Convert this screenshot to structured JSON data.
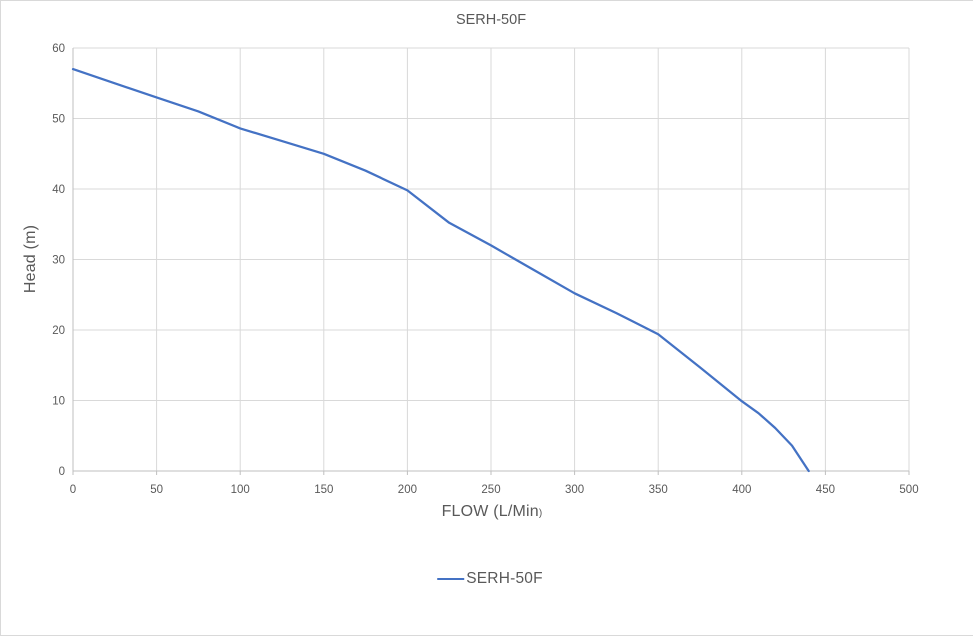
{
  "colors": {
    "accent": "#4472C4",
    "gridline": "#D9D9D9",
    "axis": "#BFBFBF",
    "text": "#595959",
    "background": "#FFFFFF"
  },
  "chart_data": {
    "type": "line",
    "title": "SERH-50F",
    "xlabel": "FLOW (L/Min",
    "xlabel_close_paren": ")",
    "ylabel": "Head (m)",
    "xlim": [
      0,
      500
    ],
    "ylim": [
      0,
      60
    ],
    "x_ticks": [
      0,
      50,
      100,
      150,
      200,
      250,
      300,
      350,
      400,
      450,
      500
    ],
    "y_ticks": [
      0,
      10,
      20,
      30,
      40,
      50,
      60
    ],
    "grid": true,
    "legend": {
      "position": "bottom",
      "entries": [
        {
          "label": "SERH-50F",
          "color": "#4472C4"
        }
      ]
    },
    "series": [
      {
        "name": "SERH-50F",
        "color": "#4472C4",
        "points": [
          [
            0,
            57
          ],
          [
            25,
            55
          ],
          [
            50,
            53
          ],
          [
            75,
            51
          ],
          [
            100,
            48.6
          ],
          [
            125,
            46.8
          ],
          [
            150,
            45
          ],
          [
            175,
            42.6
          ],
          [
            200,
            39.8
          ],
          [
            225,
            35.2
          ],
          [
            250,
            32
          ],
          [
            275,
            28.6
          ],
          [
            300,
            25.2
          ],
          [
            325,
            22.4
          ],
          [
            350,
            19.4
          ],
          [
            375,
            14.7
          ],
          [
            400,
            9.9
          ],
          [
            410,
            8.2
          ],
          [
            420,
            6.1
          ],
          [
            430,
            3.6
          ],
          [
            440,
            0
          ]
        ]
      }
    ]
  }
}
